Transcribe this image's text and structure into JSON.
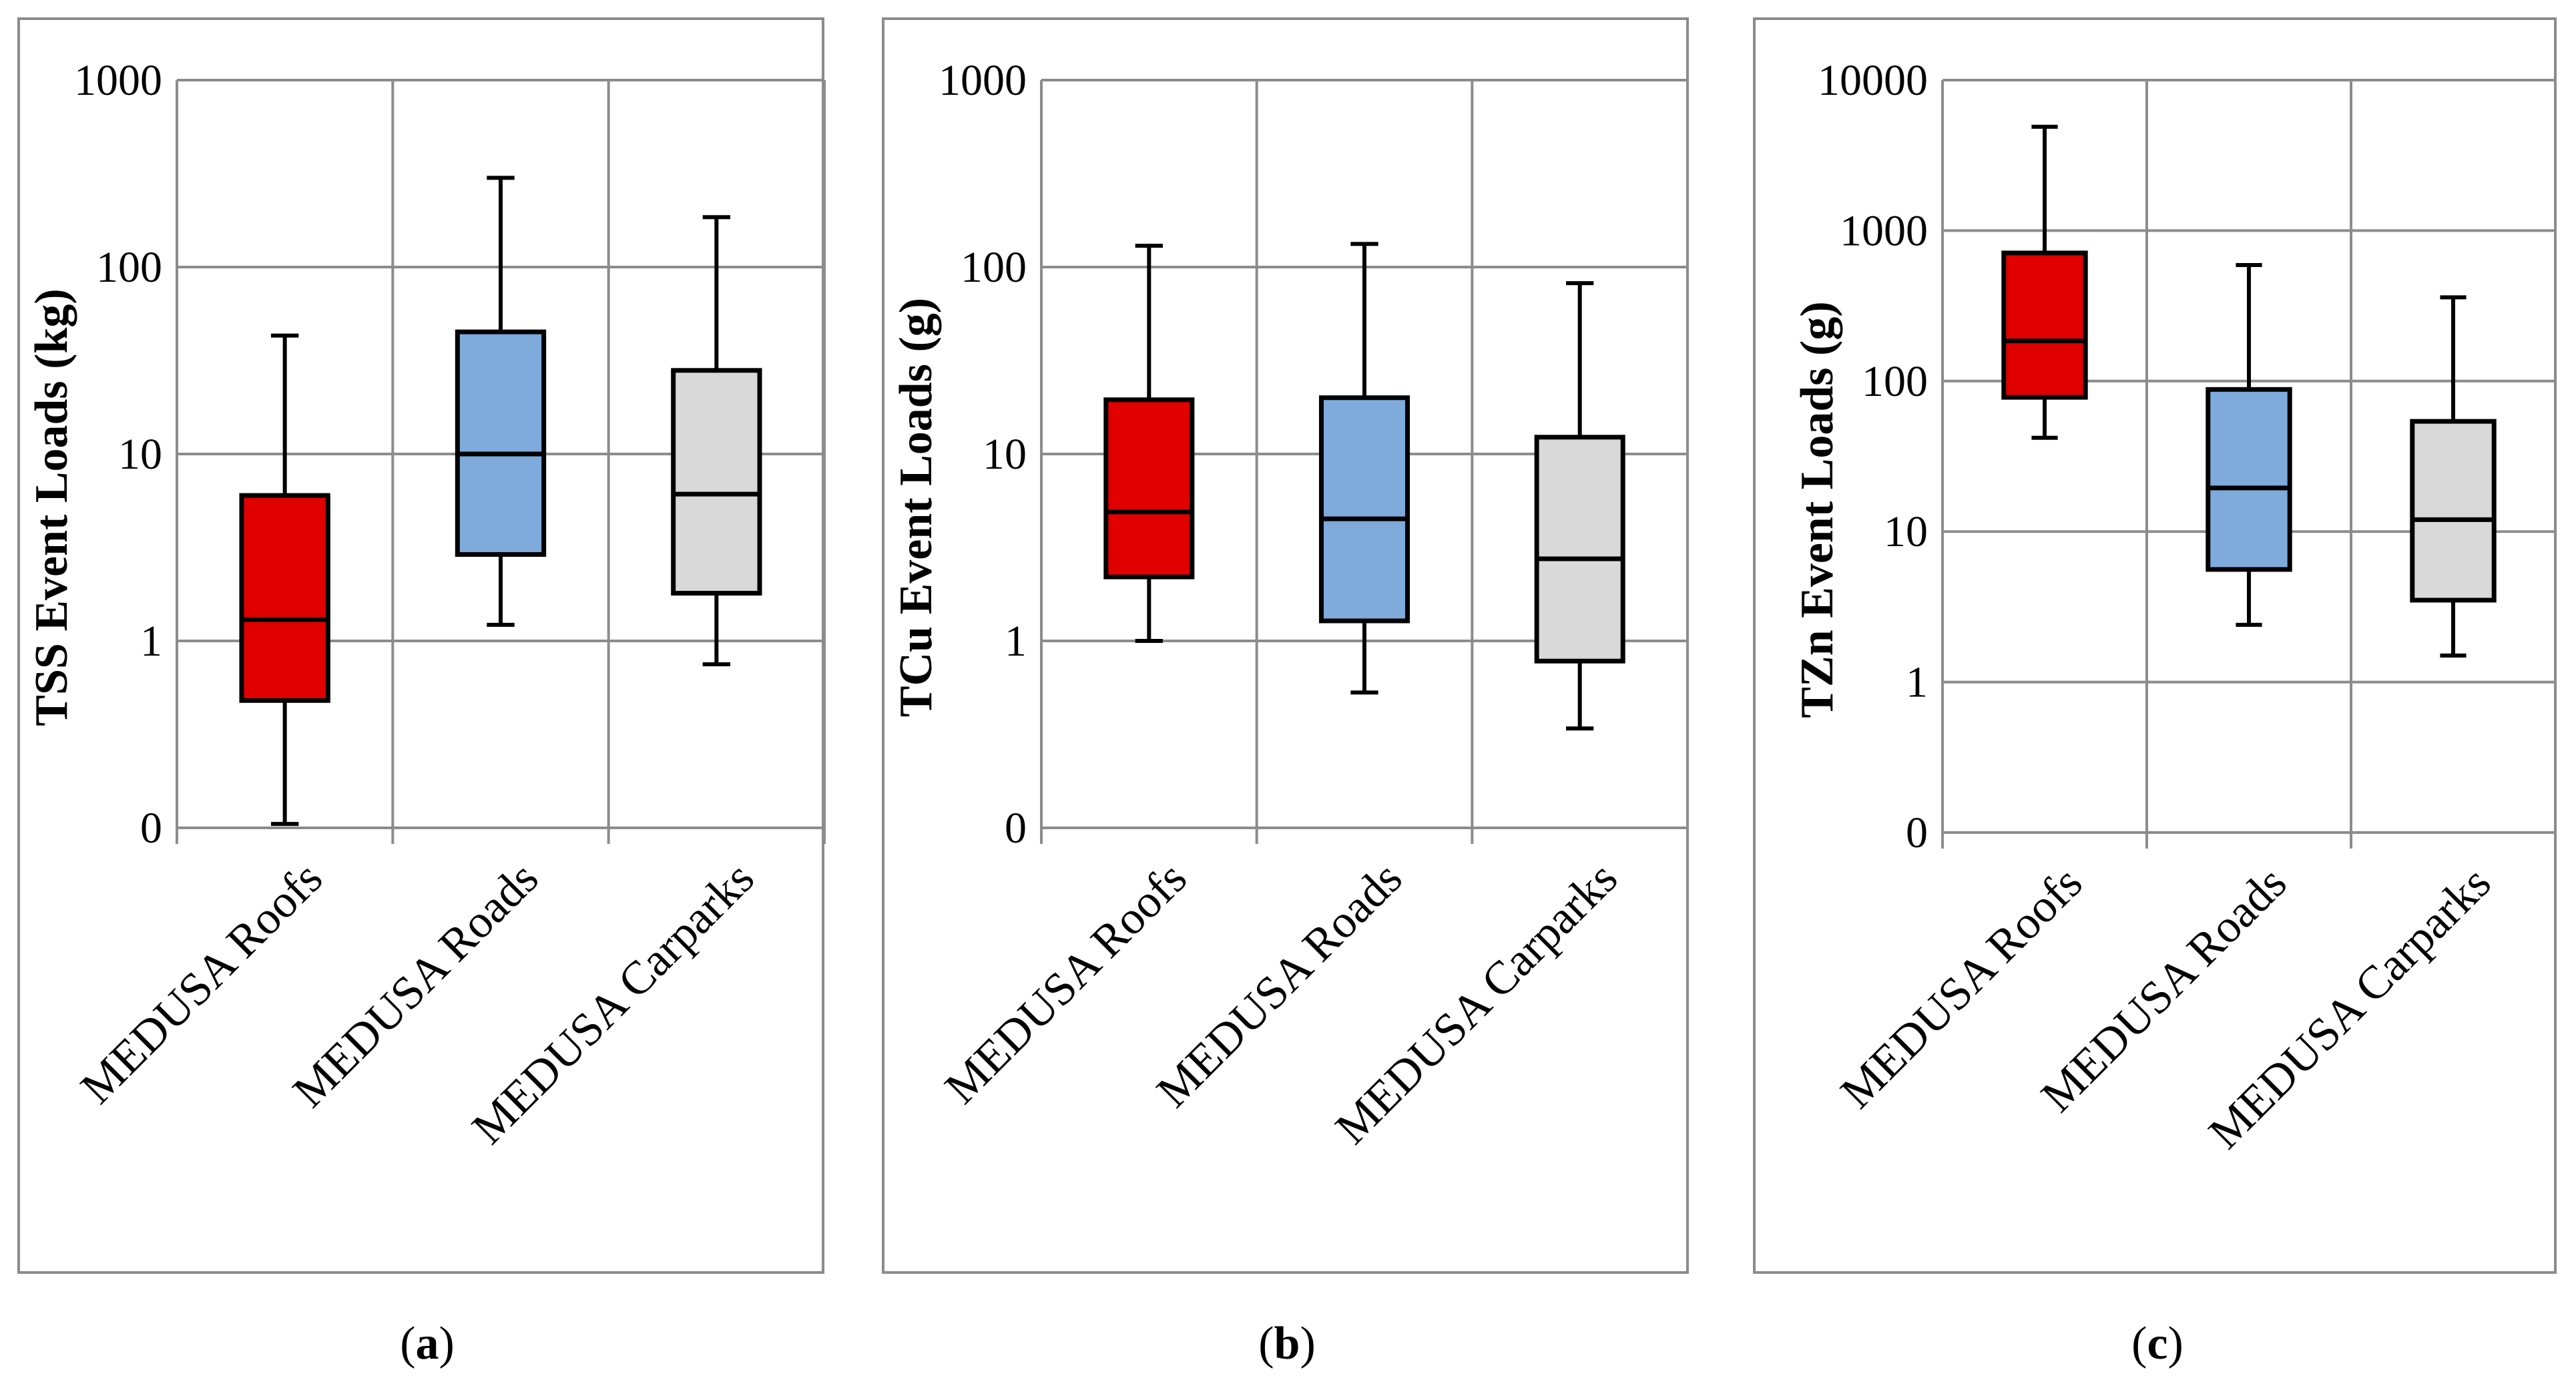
{
  "chart_data": [
    {
      "type": "boxplot",
      "panel": "a",
      "ylabel": "TSS Event Loads (kg)",
      "yscale": "log",
      "ylim": [
        0.1,
        1000
      ],
      "yticks": [
        {
          "value": 0.1,
          "label": "0"
        },
        {
          "value": 1,
          "label": "1"
        },
        {
          "value": 10,
          "label": "10"
        },
        {
          "value": 100,
          "label": "100"
        },
        {
          "value": 1000,
          "label": "1000"
        }
      ],
      "categories": [
        "MEDUSA Roofs",
        "MEDUSA Roads",
        "MEDUSA Carparks"
      ],
      "colors": [
        "#e00000",
        "#7eaadc",
        "#d9d9d9"
      ],
      "boxes": [
        {
          "min": 0.105,
          "q1": 0.48,
          "median": 1.3,
          "q3": 6,
          "max": 43
        },
        {
          "min": 1.22,
          "q1": 2.9,
          "median": 10,
          "q3": 45,
          "max": 300
        },
        {
          "min": 0.75,
          "q1": 1.8,
          "median": 6.1,
          "q3": 28,
          "max": 185
        }
      ],
      "grid": true
    },
    {
      "type": "boxplot",
      "panel": "b",
      "ylabel": "TCu Event Loads (g)",
      "yscale": "log",
      "ylim": [
        0.1,
        1000
      ],
      "yticks": [
        {
          "value": 0.1,
          "label": "0"
        },
        {
          "value": 1,
          "label": "1"
        },
        {
          "value": 10,
          "label": "10"
        },
        {
          "value": 100,
          "label": "100"
        },
        {
          "value": 1000,
          "label": "1000"
        }
      ],
      "categories": [
        "MEDUSA Roofs",
        "MEDUSA Roads",
        "MEDUSA Carparks"
      ],
      "colors": [
        "#e00000",
        "#7eaadc",
        "#d9d9d9"
      ],
      "boxes": [
        {
          "min": 1.0,
          "q1": 2.2,
          "median": 4.9,
          "q3": 19.5,
          "max": 130
        },
        {
          "min": 0.53,
          "q1": 1.28,
          "median": 4.5,
          "q3": 20,
          "max": 133
        },
        {
          "min": 0.34,
          "q1": 0.78,
          "median": 2.75,
          "q3": 12.3,
          "max": 82
        }
      ],
      "grid": true
    },
    {
      "type": "boxplot",
      "panel": "c",
      "ylabel": "TZn Event Loads (g)",
      "yscale": "log",
      "ylim": [
        0.1,
        10000
      ],
      "yticks": [
        {
          "value": 0.1,
          "label": "0"
        },
        {
          "value": 1,
          "label": "1"
        },
        {
          "value": 10,
          "label": "10"
        },
        {
          "value": 100,
          "label": "100"
        },
        {
          "value": 1000,
          "label": "1000"
        },
        {
          "value": 10000,
          "label": "10000"
        }
      ],
      "categories": [
        "MEDUSA Roofs",
        "MEDUSA Roads",
        "MEDUSA Carparks"
      ],
      "colors": [
        "#e00000",
        "#7eaadc",
        "#d9d9d9"
      ],
      "boxes": [
        {
          "min": 42,
          "q1": 78,
          "median": 185,
          "q3": 710,
          "max": 4900
        },
        {
          "min": 2.4,
          "q1": 5.6,
          "median": 19.5,
          "q3": 88,
          "max": 590
        },
        {
          "min": 1.5,
          "q1": 3.5,
          "median": 12,
          "q3": 54,
          "max": 360
        }
      ],
      "grid": true
    }
  ],
  "captions": [
    {
      "open": "(",
      "letter": "a",
      "close": ")"
    },
    {
      "open": "(",
      "letter": "b",
      "close": ")"
    },
    {
      "open": "(",
      "letter": "c",
      "close": ")"
    }
  ]
}
